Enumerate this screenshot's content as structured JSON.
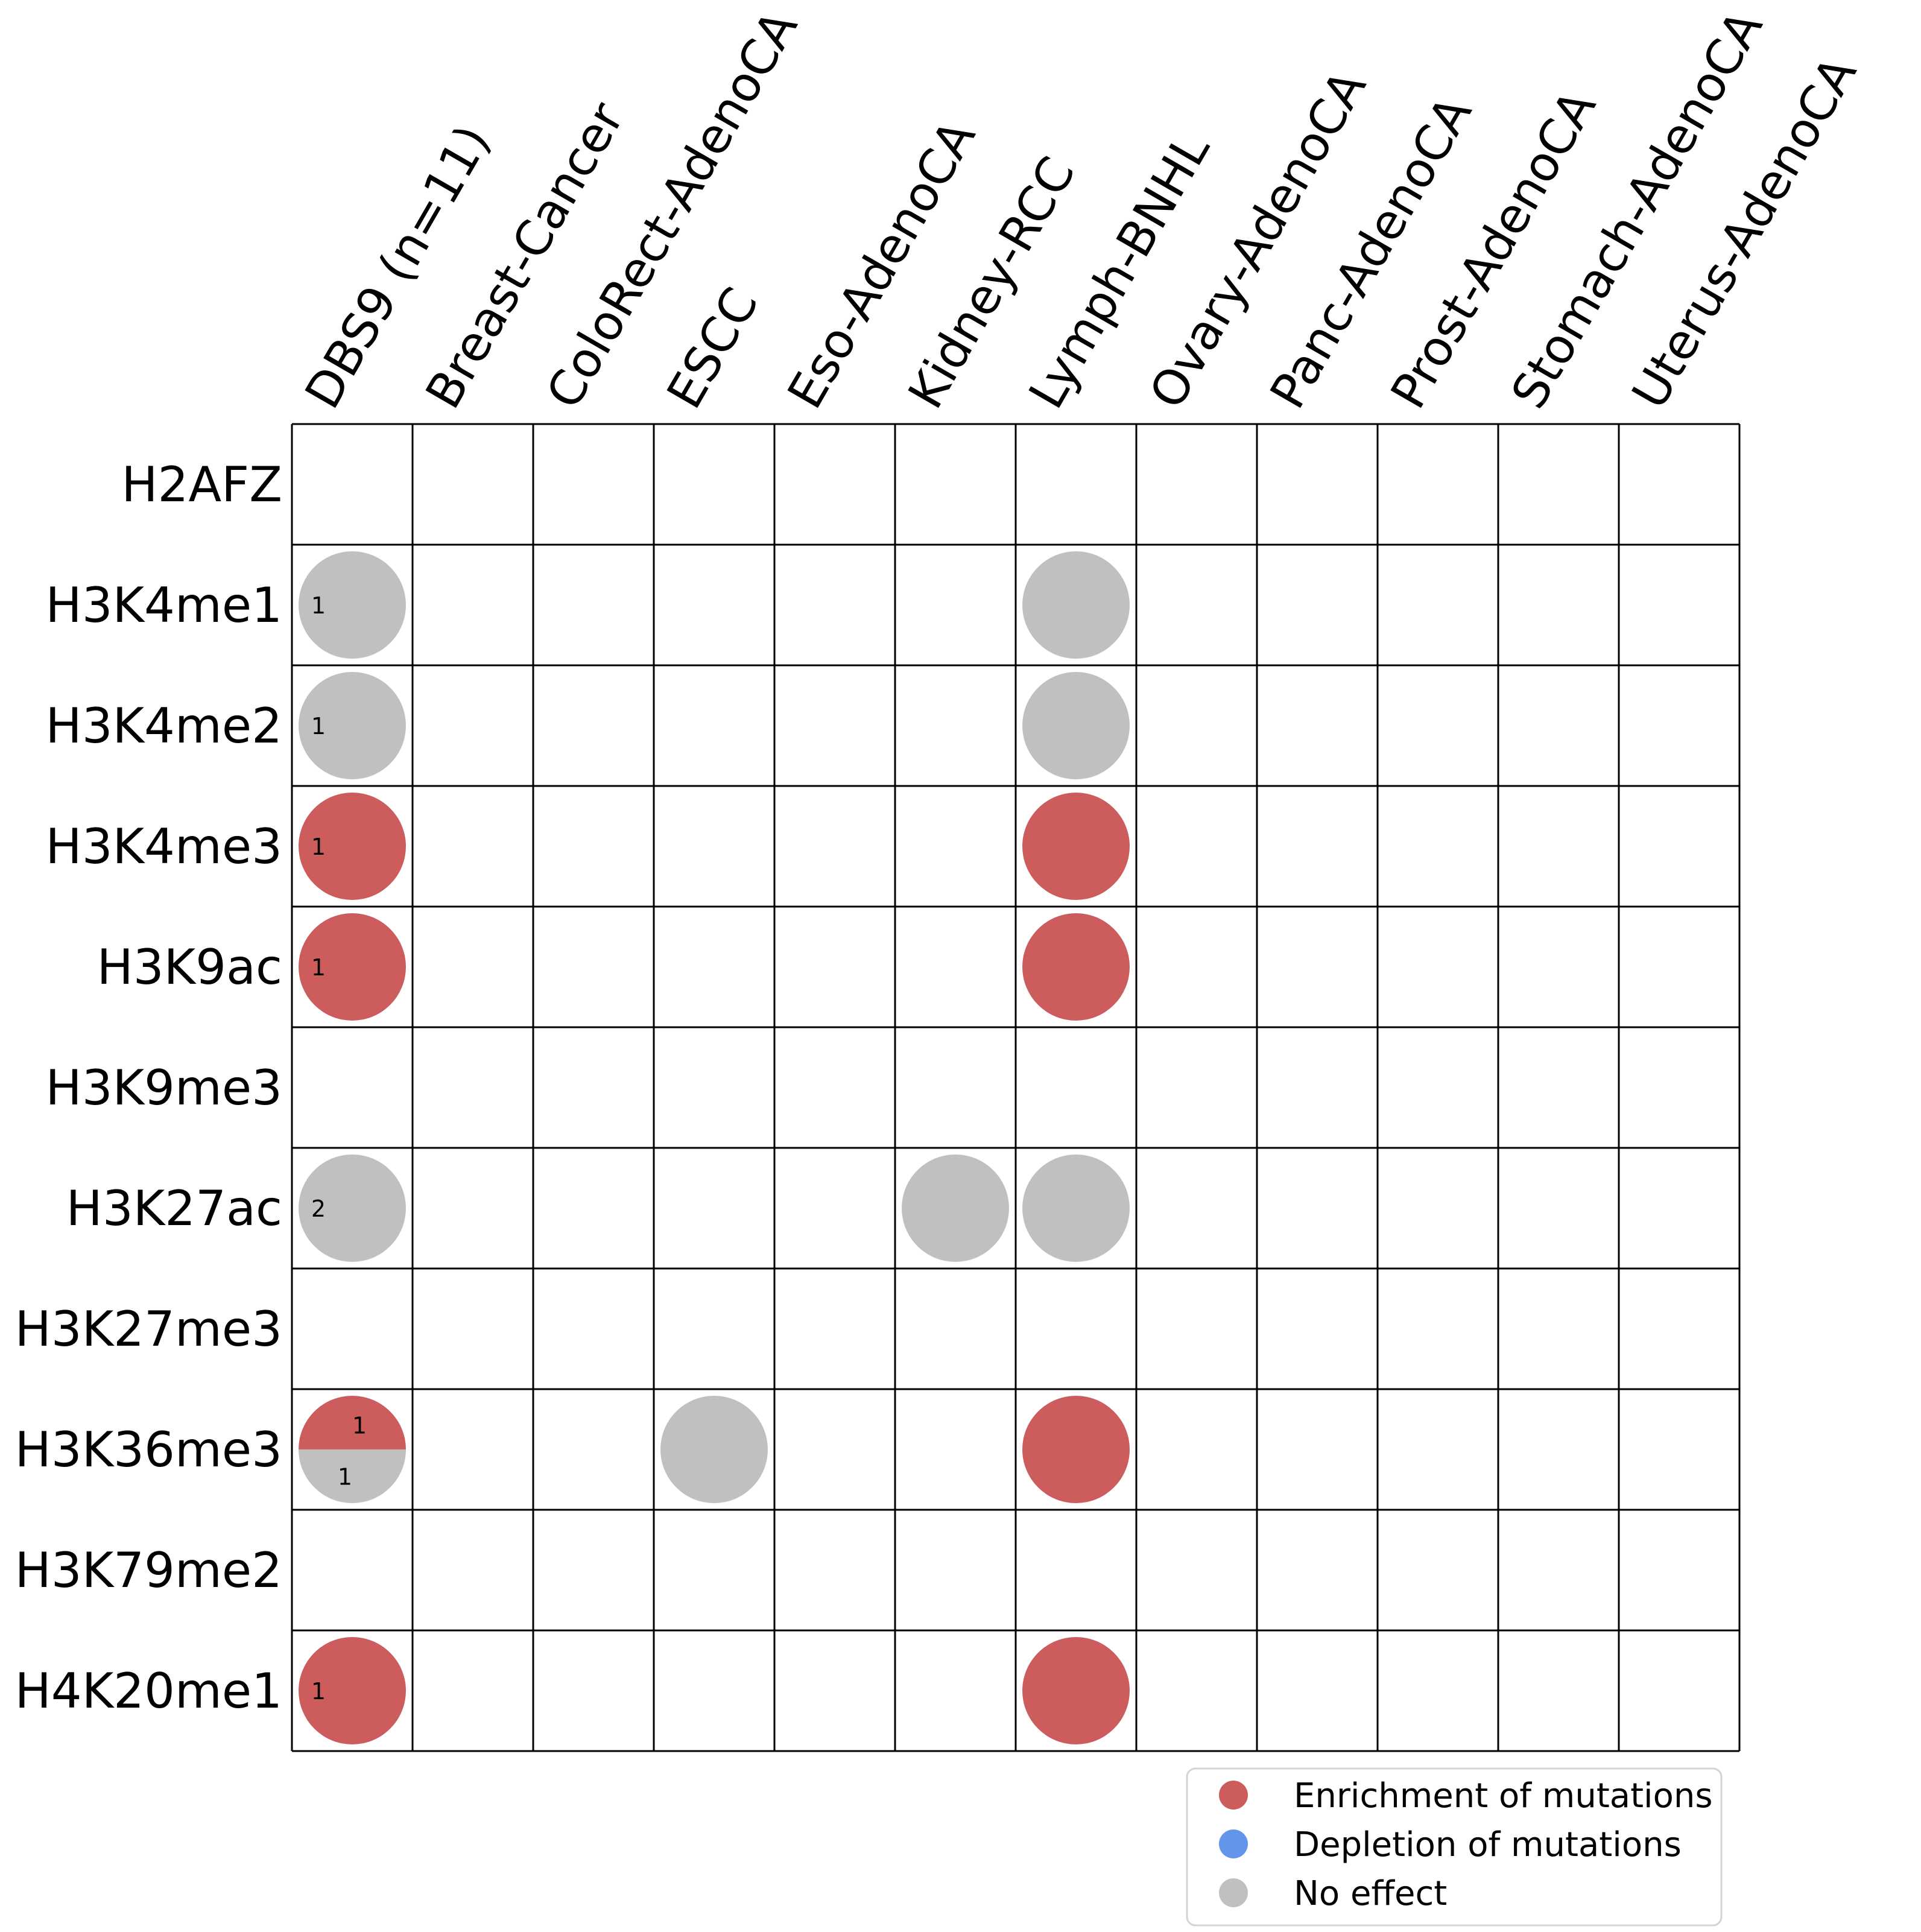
{
  "chart_data": {
    "type": "circle-grid",
    "columns": [
      "DBS9 (n=11)",
      "Breast-Cancer",
      "ColoRect-AdenoCA",
      "ESCC",
      "Eso-AdenoCA",
      "Kidney-RCC",
      "Lymph-BNHL",
      "Ovary-AdenoCA",
      "Panc-AdenoCA",
      "Prost-AdenoCA",
      "Stomach-AdenoCA",
      "Uterus-AdenoCA"
    ],
    "rows": [
      "H2AFZ",
      "H3K4me1",
      "H3K4me2",
      "H3K4me3",
      "H3K9ac",
      "H3K9me3",
      "H3K27ac",
      "H3K27me3",
      "H3K36me3",
      "H3K79me2",
      "H4K20me1"
    ],
    "cells": [
      {
        "row": "H3K4me1",
        "column": "DBS9 (n=11)",
        "enrichment": 0,
        "depletion": 0,
        "no_effect": 1,
        "labels": [
          {
            "text": "1",
            "part": "no_effect"
          }
        ]
      },
      {
        "row": "H3K4me1",
        "column": "Lymph-BNHL",
        "effect": "no_effect"
      },
      {
        "row": "H3K4me2",
        "column": "DBS9 (n=11)",
        "enrichment": 0,
        "depletion": 0,
        "no_effect": 1,
        "labels": [
          {
            "text": "1",
            "part": "no_effect"
          }
        ]
      },
      {
        "row": "H3K4me2",
        "column": "Lymph-BNHL",
        "effect": "no_effect"
      },
      {
        "row": "H3K4me3",
        "column": "DBS9 (n=11)",
        "enrichment": 1,
        "depletion": 0,
        "no_effect": 0,
        "labels": [
          {
            "text": "1",
            "part": "enrichment"
          }
        ]
      },
      {
        "row": "H3K4me3",
        "column": "Lymph-BNHL",
        "effect": "enrichment"
      },
      {
        "row": "H3K9ac",
        "column": "DBS9 (n=11)",
        "enrichment": 1,
        "depletion": 0,
        "no_effect": 0,
        "labels": [
          {
            "text": "1",
            "part": "enrichment"
          }
        ]
      },
      {
        "row": "H3K9ac",
        "column": "Lymph-BNHL",
        "effect": "enrichment"
      },
      {
        "row": "H3K27ac",
        "column": "DBS9 (n=11)",
        "enrichment": 0,
        "depletion": 0,
        "no_effect": 2,
        "labels": [
          {
            "text": "2",
            "part": "no_effect"
          }
        ]
      },
      {
        "row": "H3K27ac",
        "column": "Kidney-RCC",
        "effect": "no_effect"
      },
      {
        "row": "H3K27ac",
        "column": "Lymph-BNHL",
        "effect": "no_effect"
      },
      {
        "row": "H3K36me3",
        "column": "DBS9 (n=11)",
        "enrichment": 1,
        "depletion": 0,
        "no_effect": 1,
        "labels": [
          {
            "text": "1",
            "part": "enrichment"
          },
          {
            "text": "1",
            "part": "no_effect"
          }
        ]
      },
      {
        "row": "H3K36me3",
        "column": "ESCC",
        "effect": "no_effect"
      },
      {
        "row": "H3K36me3",
        "column": "Lymph-BNHL",
        "effect": "enrichment"
      },
      {
        "row": "H4K20me1",
        "column": "DBS9 (n=11)",
        "enrichment": 1,
        "depletion": 0,
        "no_effect": 0,
        "labels": [
          {
            "text": "1",
            "part": "enrichment"
          }
        ]
      },
      {
        "row": "H4K20me1",
        "column": "Lymph-BNHL",
        "effect": "enrichment"
      }
    ],
    "legend": [
      {
        "key": "enrichment",
        "label": "Enrichment of mutations",
        "color": "#cd5c5c"
      },
      {
        "key": "depletion",
        "label": "Depletion of mutations",
        "color": "#6495ed"
      },
      {
        "key": "no_effect",
        "label": "No effect",
        "color": "#c0c0c0"
      }
    ],
    "legend_position": "bottom-right",
    "colors": {
      "enrichment": "#cd5c5c",
      "depletion": "#6495ed",
      "no_effect": "#c0c0c0",
      "grid": "#000000"
    }
  }
}
